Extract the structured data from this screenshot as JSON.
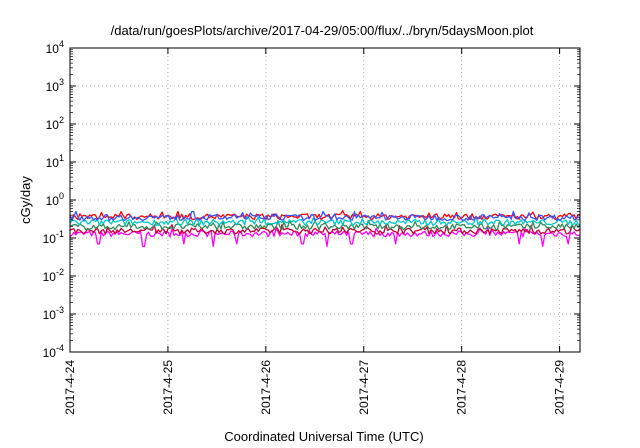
{
  "chart_data": {
    "type": "line",
    "title": "/data/run/goesPlots/archive/2017-04-29/05:00/flux/../bryn/5daysMoon.plot",
    "xlabel": "Coordinated Universal Time (UTC)",
    "ylabel": "cGy/day",
    "x_range": [
      "2017-04-24 00:00",
      "2017-04-29 05:00"
    ],
    "x_ticks": [
      "2017-4-24",
      "2017-4-25",
      "2017-4-26",
      "2017-4-27",
      "2017-4-28",
      "2017-4-29"
    ],
    "y_scale": "log",
    "y_range": [
      0.0001,
      10000
    ],
    "y_ticks": [
      {
        "base": "10",
        "exp": "4"
      },
      {
        "base": "10",
        "exp": "3"
      },
      {
        "base": "10",
        "exp": "2"
      },
      {
        "base": "10",
        "exp": "1"
      },
      {
        "base": "10",
        "exp": "0"
      },
      {
        "base": "10",
        "exp": "-1"
      },
      {
        "base": "10",
        "exp": "-2"
      },
      {
        "base": "10",
        "exp": "-3"
      },
      {
        "base": "10",
        "exp": "-4"
      }
    ],
    "grid": true,
    "legend": "none",
    "series": [
      {
        "color": "#ff00ff",
        "level": 0.13,
        "dips": [
          {
            "x": "2017-04-24 07:00",
            "y": 0.07
          },
          {
            "x": "2017-04-24 18:00",
            "y": 0.06
          },
          {
            "x": "2017-04-25 04:00",
            "y": 0.07
          },
          {
            "x": "2017-04-25 11:00",
            "y": 0.06
          },
          {
            "x": "2017-04-25 17:00",
            "y": 0.07
          },
          {
            "x": "2017-04-26 09:00",
            "y": 0.07
          },
          {
            "x": "2017-04-26 15:00",
            "y": 0.06
          },
          {
            "x": "2017-04-26 21:00",
            "y": 0.07
          },
          {
            "x": "2017-04-27 08:00",
            "y": 0.07
          },
          {
            "x": "2017-04-28 14:00",
            "y": 0.07
          },
          {
            "x": "2017-04-28 20:00",
            "y": 0.06
          },
          {
            "x": "2017-04-29 02:00",
            "y": 0.07
          }
        ]
      },
      {
        "color": "#cc0033",
        "level": 0.155
      },
      {
        "color": "#2e8b57",
        "level": 0.2
      },
      {
        "color": "#00c8c8",
        "level": 0.26
      },
      {
        "color": "#ff0000",
        "level": 0.37
      },
      {
        "color": "#3355ff",
        "level": 0.35
      }
    ]
  }
}
